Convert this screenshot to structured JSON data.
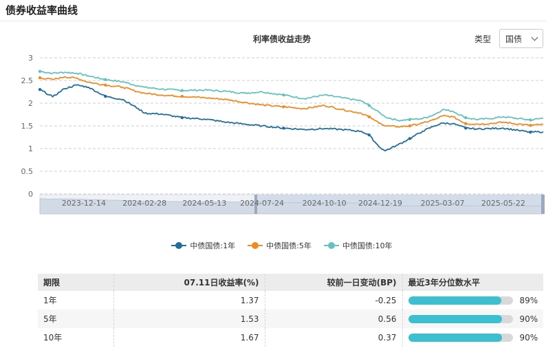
{
  "page": {
    "title": "债券收益率曲线"
  },
  "controls": {
    "type_label": "类型",
    "type_value": "国债"
  },
  "colors": {
    "series_1y": "#1f6e9c",
    "series_5y": "#f08a24",
    "series_10y": "#63c2c0",
    "bar_fill": "#3bbfd1",
    "bar_track": "#d9d9d9",
    "grid": "#cccccc"
  },
  "chart_data": {
    "type": "line",
    "title": "利率债收益走势",
    "y_ticks": [
      "0",
      "0.5",
      "1",
      "1.5",
      "2",
      "2.5",
      "3"
    ],
    "ylim": [
      0,
      3
    ],
    "x_tick_labels": [
      "2023-12-14",
      "2024-02-28",
      "2024-05-13",
      "2024-07-24",
      "2024-10-10",
      "2024-12-19",
      "2025-03-07",
      "2025-05-22"
    ],
    "x_range": [
      "2023-10-20",
      "2025-07-11"
    ],
    "grid": true,
    "legend_position": "bottom-center",
    "series": [
      {
        "name": "中债国债:1年",
        "points": [
          [
            "2023-10-20",
            2.3
          ],
          [
            "2023-11-05",
            2.14
          ],
          [
            "2023-11-20",
            2.32
          ],
          [
            "2023-12-05",
            2.4
          ],
          [
            "2023-12-20",
            2.35
          ],
          [
            "2024-01-10",
            2.15
          ],
          [
            "2024-02-01",
            2.08
          ],
          [
            "2024-02-20",
            1.88
          ],
          [
            "2024-02-28",
            1.78
          ],
          [
            "2024-03-20",
            1.76
          ],
          [
            "2024-04-15",
            1.68
          ],
          [
            "2024-05-13",
            1.65
          ],
          [
            "2024-06-10",
            1.58
          ],
          [
            "2024-07-01",
            1.54
          ],
          [
            "2024-07-24",
            1.5
          ],
          [
            "2024-08-20",
            1.45
          ],
          [
            "2024-09-15",
            1.42
          ],
          [
            "2024-10-10",
            1.44
          ],
          [
            "2024-11-01",
            1.42
          ],
          [
            "2024-11-25",
            1.38
          ],
          [
            "2024-12-05",
            1.3
          ],
          [
            "2024-12-12",
            1.15
          ],
          [
            "2024-12-19",
            1.02
          ],
          [
            "2024-12-25",
            0.95
          ],
          [
            "2025-01-10",
            1.08
          ],
          [
            "2025-01-25",
            1.22
          ],
          [
            "2025-02-10",
            1.38
          ],
          [
            "2025-02-25",
            1.5
          ],
          [
            "2025-03-07",
            1.56
          ],
          [
            "2025-03-20",
            1.55
          ],
          [
            "2025-04-05",
            1.45
          ],
          [
            "2025-04-20",
            1.43
          ],
          [
            "2025-05-05",
            1.44
          ],
          [
            "2025-05-22",
            1.45
          ],
          [
            "2025-06-10",
            1.4
          ],
          [
            "2025-06-25",
            1.36
          ],
          [
            "2025-07-11",
            1.37
          ]
        ]
      },
      {
        "name": "中债国债:5年",
        "points": [
          [
            "2023-10-20",
            2.56
          ],
          [
            "2023-11-05",
            2.52
          ],
          [
            "2023-11-20",
            2.58
          ],
          [
            "2023-12-05",
            2.55
          ],
          [
            "2023-12-20",
            2.46
          ],
          [
            "2024-01-10",
            2.4
          ],
          [
            "2024-02-01",
            2.35
          ],
          [
            "2024-02-20",
            2.25
          ],
          [
            "2024-02-28",
            2.22
          ],
          [
            "2024-03-20",
            2.18
          ],
          [
            "2024-04-15",
            2.15
          ],
          [
            "2024-05-13",
            2.12
          ],
          [
            "2024-06-10",
            2.08
          ],
          [
            "2024-07-01",
            2.02
          ],
          [
            "2024-07-24",
            1.96
          ],
          [
            "2024-08-20",
            1.92
          ],
          [
            "2024-09-15",
            1.88
          ],
          [
            "2024-10-10",
            1.95
          ],
          [
            "2024-11-01",
            1.86
          ],
          [
            "2024-11-25",
            1.78
          ],
          [
            "2024-12-05",
            1.7
          ],
          [
            "2024-12-12",
            1.62
          ],
          [
            "2024-12-19",
            1.56
          ],
          [
            "2024-12-25",
            1.5
          ],
          [
            "2025-01-10",
            1.48
          ],
          [
            "2025-01-25",
            1.5
          ],
          [
            "2025-02-10",
            1.56
          ],
          [
            "2025-02-25",
            1.64
          ],
          [
            "2025-03-07",
            1.72
          ],
          [
            "2025-03-20",
            1.7
          ],
          [
            "2025-04-05",
            1.55
          ],
          [
            "2025-04-20",
            1.54
          ],
          [
            "2025-05-05",
            1.55
          ],
          [
            "2025-05-22",
            1.58
          ],
          [
            "2025-06-10",
            1.54
          ],
          [
            "2025-06-25",
            1.51
          ],
          [
            "2025-07-11",
            1.53
          ]
        ]
      },
      {
        "name": "中债国债:10年",
        "points": [
          [
            "2023-10-20",
            2.7
          ],
          [
            "2023-11-05",
            2.66
          ],
          [
            "2023-11-20",
            2.68
          ],
          [
            "2023-12-05",
            2.66
          ],
          [
            "2023-12-20",
            2.6
          ],
          [
            "2024-01-10",
            2.52
          ],
          [
            "2024-02-01",
            2.47
          ],
          [
            "2024-02-20",
            2.38
          ],
          [
            "2024-02-28",
            2.35
          ],
          [
            "2024-03-20",
            2.31
          ],
          [
            "2024-04-15",
            2.28
          ],
          [
            "2024-05-13",
            2.29
          ],
          [
            "2024-06-10",
            2.26
          ],
          [
            "2024-07-01",
            2.22
          ],
          [
            "2024-07-24",
            2.25
          ],
          [
            "2024-08-20",
            2.18
          ],
          [
            "2024-09-15",
            2.1
          ],
          [
            "2024-10-10",
            2.18
          ],
          [
            "2024-11-01",
            2.12
          ],
          [
            "2024-11-25",
            2.05
          ],
          [
            "2024-12-05",
            1.95
          ],
          [
            "2024-12-12",
            1.86
          ],
          [
            "2024-12-19",
            1.78
          ],
          [
            "2024-12-25",
            1.7
          ],
          [
            "2025-01-10",
            1.62
          ],
          [
            "2025-01-25",
            1.64
          ],
          [
            "2025-02-10",
            1.66
          ],
          [
            "2025-02-25",
            1.75
          ],
          [
            "2025-03-07",
            1.86
          ],
          [
            "2025-03-20",
            1.82
          ],
          [
            "2025-04-05",
            1.68
          ],
          [
            "2025-04-20",
            1.64
          ],
          [
            "2025-05-05",
            1.66
          ],
          [
            "2025-05-22",
            1.7
          ],
          [
            "2025-06-10",
            1.66
          ],
          [
            "2025-06-25",
            1.63
          ],
          [
            "2025-07-11",
            1.67
          ]
        ]
      }
    ]
  },
  "table": {
    "headers": [
      "期限",
      "07.11日收益率(%)",
      "较前一日变动(BP)",
      "最近3年分位数水平"
    ],
    "rows": [
      {
        "term": "1年",
        "yield": "1.37",
        "change": "-0.25",
        "percentile": 0.89,
        "percentile_label": "89%"
      },
      {
        "term": "5年",
        "yield": "1.53",
        "change": "0.56",
        "percentile": 0.9,
        "percentile_label": "90%"
      },
      {
        "term": "10年",
        "yield": "1.67",
        "change": "0.37",
        "percentile": 0.9,
        "percentile_label": "90%"
      }
    ]
  }
}
